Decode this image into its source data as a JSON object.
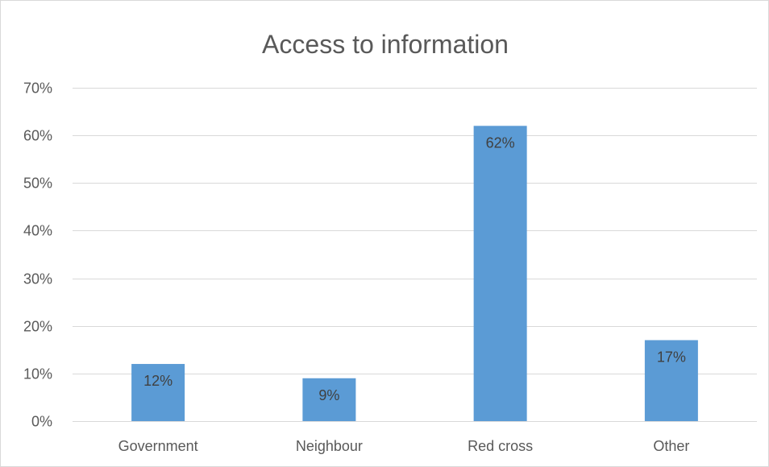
{
  "chart_data": {
    "type": "bar",
    "title": "Access to information",
    "categories": [
      "Government",
      "Neighbour",
      "Red cross",
      "Other"
    ],
    "values": [
      12,
      9,
      62,
      17
    ],
    "data_labels": [
      "12%",
      "9%",
      "62%",
      "17%"
    ],
    "ylim": [
      0,
      70
    ],
    "y_ticks": [
      0,
      10,
      20,
      30,
      40,
      50,
      60,
      70
    ],
    "y_tick_labels": [
      "0%",
      "10%",
      "20%",
      "30%",
      "40%",
      "50%",
      "60%",
      "70%"
    ],
    "xlabel": "",
    "ylabel": "",
    "grid": true,
    "legend": "none",
    "colors": {
      "bar": "#5b9bd5",
      "grid": "#d9d9d9",
      "text": "#595959"
    }
  }
}
